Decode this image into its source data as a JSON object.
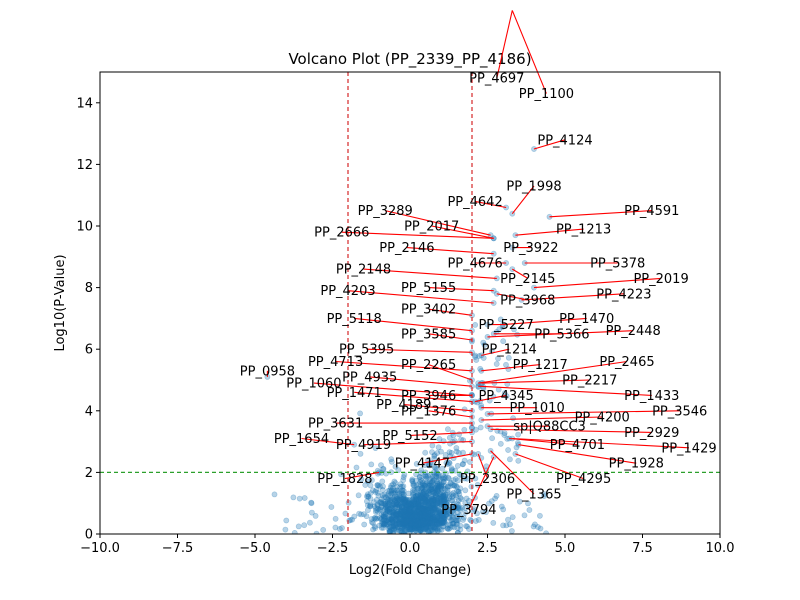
{
  "chart_data": {
    "type": "scatter",
    "title": "Volcano Plot (PP_2339_PP_4186)",
    "xlabel": "Log2(Fold Change)",
    "ylabel": "Log10(P-Value)",
    "xlim": [
      -10,
      10
    ],
    "ylim": [
      0,
      15
    ],
    "xticks": [
      -10,
      -7.5,
      -5,
      -2.5,
      0,
      2.5,
      5,
      7.5,
      10
    ],
    "yticks": [
      0,
      2,
      4,
      6,
      8,
      10,
      12,
      14
    ],
    "xtick_labels": [
      "−10.0",
      "−7.5",
      "−5.0",
      "−2.5",
      "0.0",
      "2.5",
      "5.0",
      "7.5",
      "10.0"
    ],
    "ytick_labels": [
      "0",
      "2",
      "4",
      "6",
      "8",
      "10",
      "12",
      "14"
    ],
    "grid": false,
    "colors": {
      "points": "#1f77b4",
      "fold_threshold": "#d62728",
      "pvalue_threshold": "#2ca02c",
      "connector": "#ff0000"
    },
    "thresholds": {
      "fold_change": [
        -2,
        2
      ],
      "log10_pvalue": 2
    },
    "bulk_points": {
      "approx_count": 1500,
      "note_center_x": 0.3
    },
    "labeled_points": [
      {
        "name": "PP_4697",
        "x": 3.3,
        "y": 17.0,
        "lx": 2.8,
        "ly": 14.8
      },
      {
        "name": "PP_1100",
        "x": 3.3,
        "y": 17.0,
        "lx": 4.4,
        "ly": 14.3
      },
      {
        "name": "PP_4124",
        "x": 4.0,
        "y": 12.5,
        "lx": 5.0,
        "ly": 12.8
      },
      {
        "name": "PP_1998",
        "x": 3.3,
        "y": 10.4,
        "lx": 4.0,
        "ly": 11.3
      },
      {
        "name": "PP_4642",
        "x": 3.1,
        "y": 10.6,
        "lx": 2.1,
        "ly": 10.8
      },
      {
        "name": "PP_4591",
        "x": 4.5,
        "y": 10.3,
        "lx": 7.8,
        "ly": 10.5
      },
      {
        "name": "PP_3289",
        "x": 2.6,
        "y": 9.7,
        "lx": -0.8,
        "ly": 10.5
      },
      {
        "name": "PP_2017",
        "x": 2.7,
        "y": 9.6,
        "lx": 0.7,
        "ly": 10.0
      },
      {
        "name": "PP_1213",
        "x": 3.4,
        "y": 9.7,
        "lx": 5.6,
        "ly": 9.9
      },
      {
        "name": "PP_2666",
        "x": 2.7,
        "y": 9.6,
        "lx": -2.2,
        "ly": 9.8
      },
      {
        "name": "PP_2146",
        "x": 2.7,
        "y": 9.1,
        "lx": -0.1,
        "ly": 9.3
      },
      {
        "name": "PP_3922",
        "x": 3.3,
        "y": 9.3,
        "lx": 3.9,
        "ly": 9.3
      },
      {
        "name": "PP_4676",
        "x": 3.1,
        "y": 8.8,
        "lx": 2.1,
        "ly": 8.8
      },
      {
        "name": "PP_5378",
        "x": 3.7,
        "y": 8.8,
        "lx": 6.7,
        "ly": 8.8
      },
      {
        "name": "PP_2148",
        "x": 2.8,
        "y": 8.3,
        "lx": -1.5,
        "ly": 8.6
      },
      {
        "name": "PP_2145",
        "x": 3.3,
        "y": 8.6,
        "lx": 3.8,
        "ly": 8.3
      },
      {
        "name": "PP_2019",
        "x": 4.0,
        "y": 8.0,
        "lx": 8.1,
        "ly": 8.3
      },
      {
        "name": "PP_5155",
        "x": 2.7,
        "y": 7.9,
        "lx": 0.6,
        "ly": 8.0
      },
      {
        "name": "PP_4203",
        "x": 2.7,
        "y": 7.5,
        "lx": -2.0,
        "ly": 7.9
      },
      {
        "name": "PP_3968",
        "x": 2.8,
        "y": 7.8,
        "lx": 3.8,
        "ly": 7.6
      },
      {
        "name": "PP_4223",
        "x": 3.6,
        "y": 7.6,
        "lx": 6.9,
        "ly": 7.8
      },
      {
        "name": "PP_3402",
        "x": 2.0,
        "y": 7.1,
        "lx": 0.6,
        "ly": 7.3
      },
      {
        "name": "PP_1470",
        "x": 3.0,
        "y": 6.8,
        "lx": 5.7,
        "ly": 7.0
      },
      {
        "name": "PP_5118",
        "x": 2.0,
        "y": 6.6,
        "lx": -1.8,
        "ly": 7.0
      },
      {
        "name": "PP_5227",
        "x": 2.5,
        "y": 6.8,
        "lx": 3.1,
        "ly": 6.8
      },
      {
        "name": "PP_3585",
        "x": 2.0,
        "y": 6.3,
        "lx": 0.6,
        "ly": 6.5
      },
      {
        "name": "PP_5366",
        "x": 2.7,
        "y": 6.5,
        "lx": 4.9,
        "ly": 6.5
      },
      {
        "name": "PP_2448",
        "x": 2.5,
        "y": 6.4,
        "lx": 7.2,
        "ly": 6.6
      },
      {
        "name": "PP_1214",
        "x": 2.3,
        "y": 5.8,
        "lx": 3.2,
        "ly": 6.0
      },
      {
        "name": "PP_5395",
        "x": 2.0,
        "y": 5.9,
        "lx": -1.4,
        "ly": 6.0
      },
      {
        "name": "PP_4713",
        "x": 2.0,
        "y": 5.3,
        "lx": -2.4,
        "ly": 5.6
      },
      {
        "name": "PP_2265",
        "x": 2.0,
        "y": 5.0,
        "lx": 0.6,
        "ly": 5.5
      },
      {
        "name": "PP_1217",
        "x": 2.3,
        "y": 5.3,
        "lx": 4.2,
        "ly": 5.5
      },
      {
        "name": "PP_2465",
        "x": 2.2,
        "y": 4.9,
        "lx": 7.0,
        "ly": 5.6
      },
      {
        "name": "PP_0958",
        "x": -4.6,
        "y": 5.1,
        "lx": -4.6,
        "ly": 5.3
      },
      {
        "name": "PP_4935",
        "x": 2.0,
        "y": 4.8,
        "lx": -1.3,
        "ly": 5.1
      },
      {
        "name": "PP_2217",
        "x": 2.3,
        "y": 4.9,
        "lx": 5.8,
        "ly": 5.0
      },
      {
        "name": "PP_1060",
        "x": 2.0,
        "y": 4.5,
        "lx": -3.1,
        "ly": 4.9
      },
      {
        "name": "PP_1471",
        "x": 2.0,
        "y": 4.3,
        "lx": -1.8,
        "ly": 4.6
      },
      {
        "name": "PP_3946",
        "x": 2.0,
        "y": 4.5,
        "lx": 0.6,
        "ly": 4.5
      },
      {
        "name": "PP_4345",
        "x": 2.1,
        "y": 4.3,
        "lx": 3.1,
        "ly": 4.5
      },
      {
        "name": "PP_1433",
        "x": 2.2,
        "y": 4.8,
        "lx": 7.8,
        "ly": 4.5
      },
      {
        "name": "PP_4189",
        "x": 2.0,
        "y": 4.0,
        "lx": -0.2,
        "ly": 4.2
      },
      {
        "name": "PP_1010",
        "x": 2.3,
        "y": 4.1,
        "lx": 4.1,
        "ly": 4.1
      },
      {
        "name": "PP_3546",
        "x": 2.5,
        "y": 3.9,
        "lx": 8.7,
        "ly": 4.0
      },
      {
        "name": "PP_1376",
        "x": 2.0,
        "y": 3.8,
        "lx": 0.6,
        "ly": 4.0
      },
      {
        "name": "PP_4200",
        "x": 2.3,
        "y": 3.7,
        "lx": 6.2,
        "ly": 3.8
      },
      {
        "name": "PP_3631",
        "x": 2.0,
        "y": 3.6,
        "lx": -2.4,
        "ly": 3.6
      },
      {
        "name": "sp|Q88CC3",
        "x": 2.5,
        "y": 3.5,
        "lx": 4.5,
        "ly": 3.5
      },
      {
        "name": "PP_2929",
        "x": 2.6,
        "y": 3.4,
        "lx": 7.8,
        "ly": 3.3
      },
      {
        "name": "PP_5152",
        "x": 2.0,
        "y": 3.3,
        "lx": 0.0,
        "ly": 3.2
      },
      {
        "name": "PP_1654",
        "x": -1.8,
        "y": 2.9,
        "lx": -3.5,
        "ly": 3.1
      },
      {
        "name": "PP_4701",
        "x": 3.2,
        "y": 3.1,
        "lx": 5.4,
        "ly": 2.9
      },
      {
        "name": "PP_1429",
        "x": 3.3,
        "y": 3.1,
        "lx": 9.0,
        "ly": 2.8
      },
      {
        "name": "PP_4919",
        "x": 2.0,
        "y": 3.0,
        "lx": -1.5,
        "ly": 2.9
      },
      {
        "name": "PP_1928",
        "x": 3.5,
        "y": 2.9,
        "lx": 7.3,
        "ly": 2.3
      },
      {
        "name": "PP_4147",
        "x": 2.0,
        "y": 2.6,
        "lx": 0.4,
        "ly": 2.3
      },
      {
        "name": "PP_4295",
        "x": 3.4,
        "y": 2.6,
        "lx": 5.6,
        "ly": 1.8
      },
      {
        "name": "PP_1828",
        "x": -1.0,
        "y": 2.0,
        "lx": -2.1,
        "ly": 1.8
      },
      {
        "name": "PP_2306",
        "x": 2.2,
        "y": 2.6,
        "lx": 2.5,
        "ly": 1.8
      },
      {
        "name": "PP_1365",
        "x": 2.6,
        "y": 2.7,
        "lx": 4.0,
        "ly": 1.3
      },
      {
        "name": "PP_3794",
        "x": 2.7,
        "y": 2.5,
        "lx": 1.9,
        "ly": 0.8
      }
    ]
  }
}
